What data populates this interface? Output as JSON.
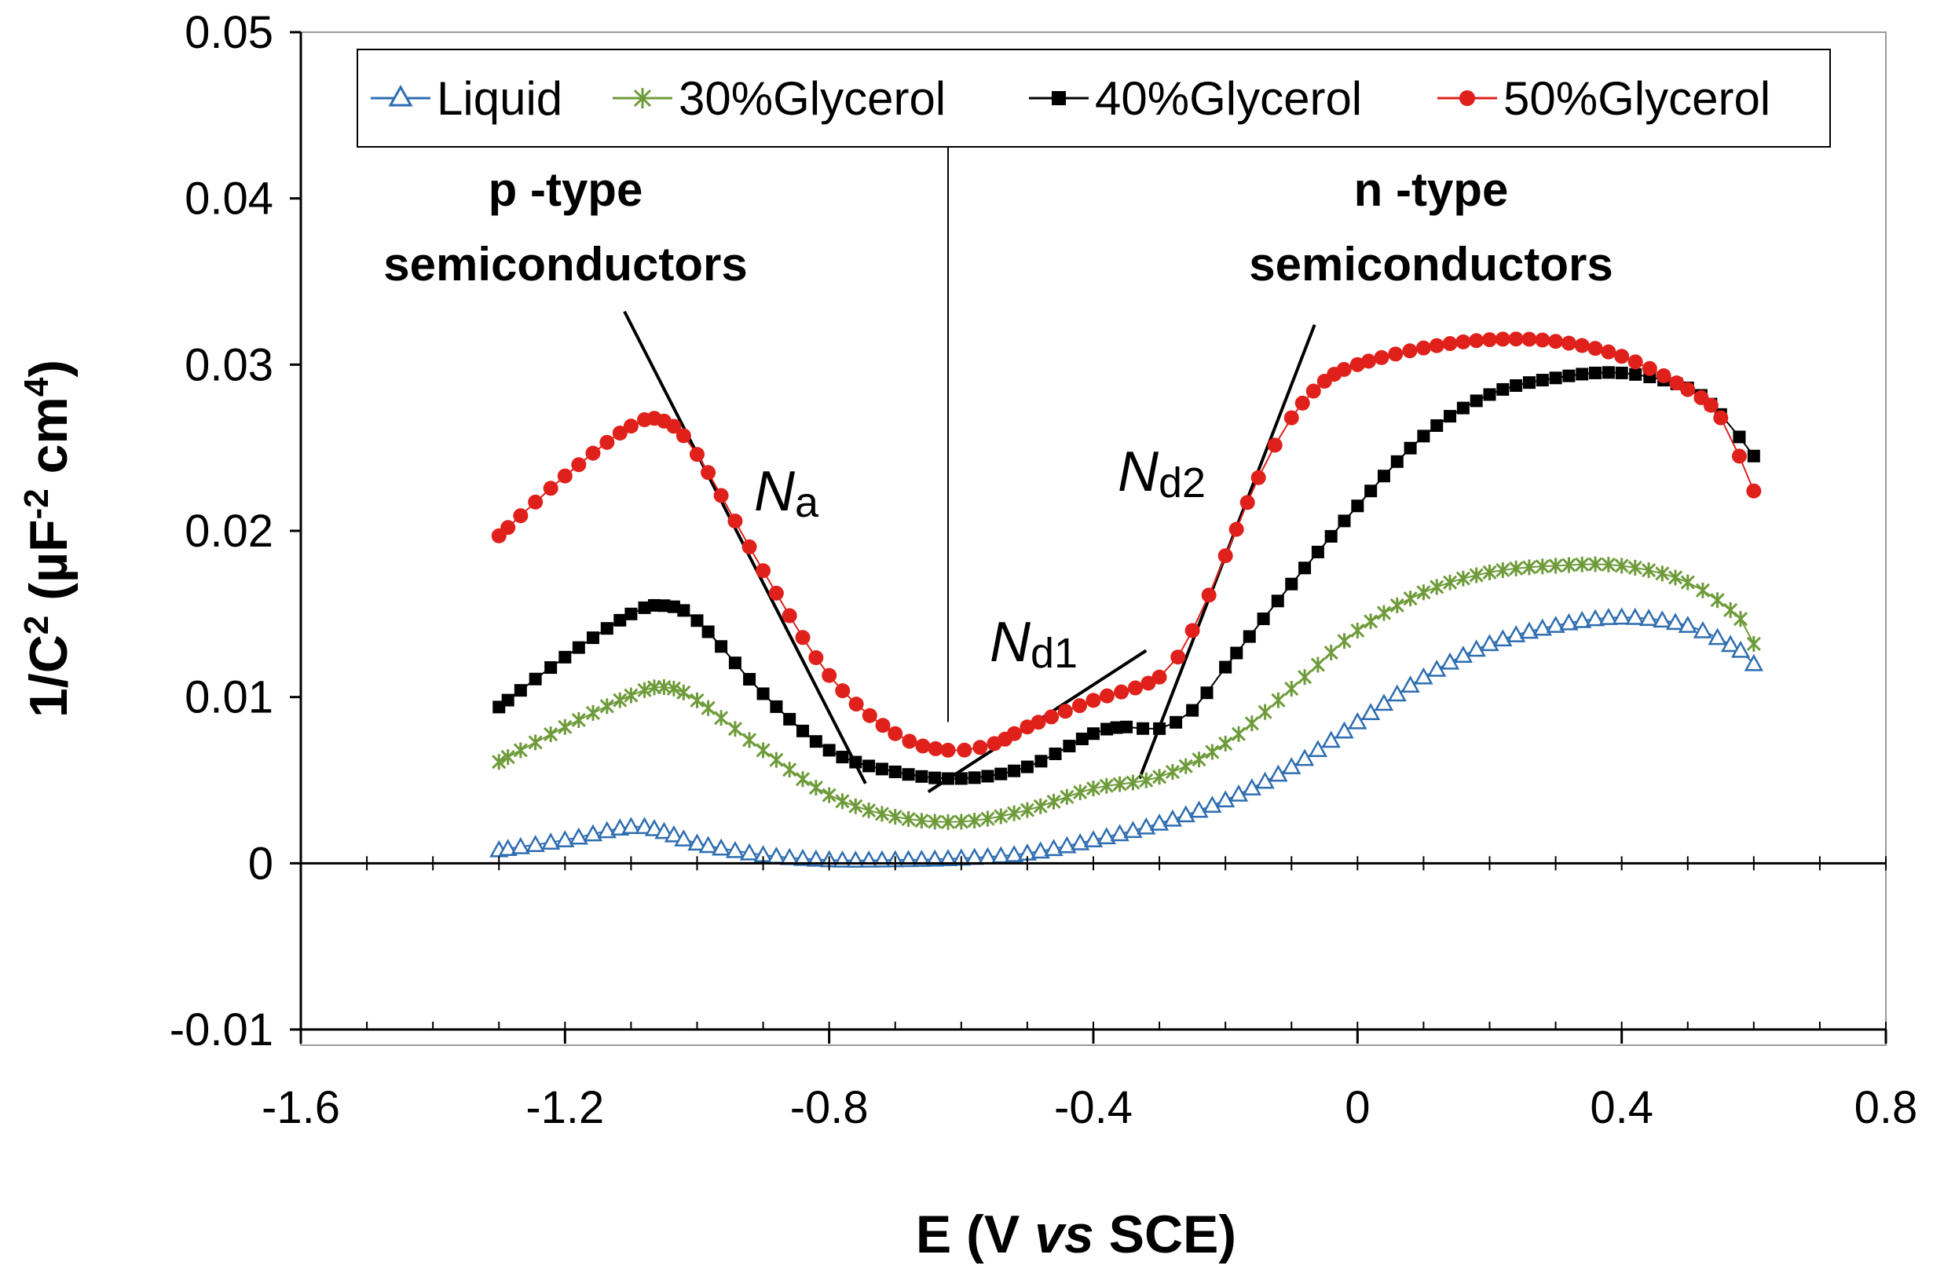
{
  "chart_data": {
    "type": "scatter",
    "title": "",
    "xlabel_parts": {
      "pre": "E (V ",
      "italic": "vs",
      "post": " SCE)"
    },
    "ylabel_parts": {
      "a": "1/C",
      "sup1": "2",
      "b": " (µF",
      "sup2": "-2",
      "c": " cm",
      "sup3": "4",
      "d": ")"
    },
    "xlim": [
      -1.6,
      0.8
    ],
    "ylim": [
      -0.01,
      0.05
    ],
    "x_ticks": [
      "-1.6",
      "-1.2",
      "-0.8",
      "-0.4",
      "0",
      "0.4",
      "0.8"
    ],
    "y_ticks": [
      "-0.01",
      "0",
      "0.01",
      "0.02",
      "0.03",
      "0.04",
      "0.05"
    ],
    "x_tick_values": [
      -1.6,
      -1.2,
      -0.8,
      -0.4,
      0,
      0.4,
      0.8
    ],
    "y_tick_values": [
      -0.01,
      0,
      0.01,
      0.02,
      0.03,
      0.04,
      0.05
    ],
    "legend": [
      "Liquid",
      "30%Glycerol",
      "40%Glycerol",
      "50%Glycerol"
    ],
    "series": [
      {
        "name": "Liquid",
        "color": "#2E6DB0",
        "marker": "triangle",
        "points": [
          [
            -1.3,
            0.0008
          ],
          [
            -1.2,
            0.0014
          ],
          [
            -1.1,
            0.0022
          ],
          [
            -1.05,
            0.0019
          ],
          [
            -1.0,
            0.0012
          ],
          [
            -0.9,
            0.0005
          ],
          [
            -0.8,
            0.0002
          ],
          [
            -0.7,
            0.0002
          ],
          [
            -0.6,
            0.0003
          ],
          [
            -0.5,
            0.0006
          ],
          [
            -0.4,
            0.0014
          ],
          [
            -0.3,
            0.0024
          ],
          [
            -0.2,
            0.0038
          ],
          [
            -0.1,
            0.0058
          ],
          [
            0.0,
            0.0085
          ],
          [
            0.1,
            0.0112
          ],
          [
            0.2,
            0.0132
          ],
          [
            0.3,
            0.0143
          ],
          [
            0.4,
            0.0148
          ],
          [
            0.5,
            0.0143
          ],
          [
            0.58,
            0.0128
          ],
          [
            0.6,
            0.012
          ]
        ]
      },
      {
        "name": "30%Glycerol",
        "color": "#6E9B3A",
        "marker": "star",
        "points": [
          [
            -1.3,
            0.0061
          ],
          [
            -1.2,
            0.0082
          ],
          [
            -1.1,
            0.0101
          ],
          [
            -1.05,
            0.0106
          ],
          [
            -1.0,
            0.0098
          ],
          [
            -0.9,
            0.0068
          ],
          [
            -0.8,
            0.0041
          ],
          [
            -0.7,
            0.0028
          ],
          [
            -0.6,
            0.0025
          ],
          [
            -0.5,
            0.0032
          ],
          [
            -0.4,
            0.0045
          ],
          [
            -0.3,
            0.0052
          ],
          [
            -0.2,
            0.0072
          ],
          [
            -0.1,
            0.0105
          ],
          [
            0.0,
            0.014
          ],
          [
            0.1,
            0.0163
          ],
          [
            0.2,
            0.0175
          ],
          [
            0.3,
            0.0179
          ],
          [
            0.4,
            0.0179
          ],
          [
            0.5,
            0.0169
          ],
          [
            0.58,
            0.0147
          ],
          [
            0.6,
            0.0132
          ]
        ]
      },
      {
        "name": "40%Glycerol",
        "color": "#000000",
        "marker": "square",
        "points": [
          [
            -1.3,
            0.0094
          ],
          [
            -1.2,
            0.0124
          ],
          [
            -1.1,
            0.015
          ],
          [
            -1.05,
            0.0155
          ],
          [
            -1.0,
            0.0146
          ],
          [
            -0.9,
            0.0102
          ],
          [
            -0.8,
            0.0068
          ],
          [
            -0.7,
            0.0055
          ],
          [
            -0.6,
            0.0051
          ],
          [
            -0.5,
            0.0058
          ],
          [
            -0.4,
            0.0078
          ],
          [
            -0.35,
            0.0082
          ],
          [
            -0.3,
            0.0081
          ],
          [
            -0.25,
            0.0092
          ],
          [
            -0.2,
            0.0118
          ],
          [
            -0.1,
            0.0168
          ],
          [
            0.0,
            0.0215
          ],
          [
            0.1,
            0.0257
          ],
          [
            0.2,
            0.0282
          ],
          [
            0.3,
            0.0292
          ],
          [
            0.4,
            0.0295
          ],
          [
            0.5,
            0.0286
          ],
          [
            0.55,
            0.027
          ],
          [
            0.6,
            0.0245
          ]
        ]
      },
      {
        "name": "50%Glycerol",
        "color": "#E0201B",
        "marker": "circle",
        "points": [
          [
            -1.3,
            0.0197
          ],
          [
            -1.2,
            0.0233
          ],
          [
            -1.1,
            0.0263
          ],
          [
            -1.05,
            0.0266
          ],
          [
            -1.0,
            0.0246
          ],
          [
            -0.9,
            0.0176
          ],
          [
            -0.8,
            0.0113
          ],
          [
            -0.7,
            0.0078
          ],
          [
            -0.62,
            0.0068
          ],
          [
            -0.55,
            0.0072
          ],
          [
            -0.5,
            0.0082
          ],
          [
            -0.4,
            0.0098
          ],
          [
            -0.3,
            0.0112
          ],
          [
            -0.25,
            0.014
          ],
          [
            -0.2,
            0.0185
          ],
          [
            -0.15,
            0.0232
          ],
          [
            -0.1,
            0.0268
          ],
          [
            -0.05,
            0.029
          ],
          [
            0.0,
            0.03
          ],
          [
            0.1,
            0.031
          ],
          [
            0.2,
            0.0315
          ],
          [
            0.3,
            0.0314
          ],
          [
            0.4,
            0.0305
          ],
          [
            0.5,
            0.0285
          ],
          [
            0.55,
            0.0268
          ],
          [
            0.6,
            0.0224
          ]
        ]
      }
    ],
    "fit_lines": [
      {
        "name": "Na",
        "x1": -1.11,
        "y1": 0.0332,
        "x2": -0.745,
        "y2": 0.0048
      },
      {
        "name": "Nd1",
        "x1": -0.65,
        "y1": 0.0043,
        "x2": -0.32,
        "y2": 0.0128
      },
      {
        "name": "Nd2",
        "x1": -0.33,
        "y1": 0.0051,
        "x2": -0.065,
        "y2": 0.0324
      }
    ],
    "divider_x": -0.62,
    "annotations": {
      "p_type": [
        "p -type",
        "semiconductors"
      ],
      "n_type": [
        "n -type",
        "semiconductors"
      ],
      "Na": {
        "main": "N",
        "sub": "a"
      },
      "Nd1": {
        "main": "N",
        "sub": "d1"
      },
      "Nd2": {
        "main": "N",
        "sub": "d2"
      }
    }
  }
}
